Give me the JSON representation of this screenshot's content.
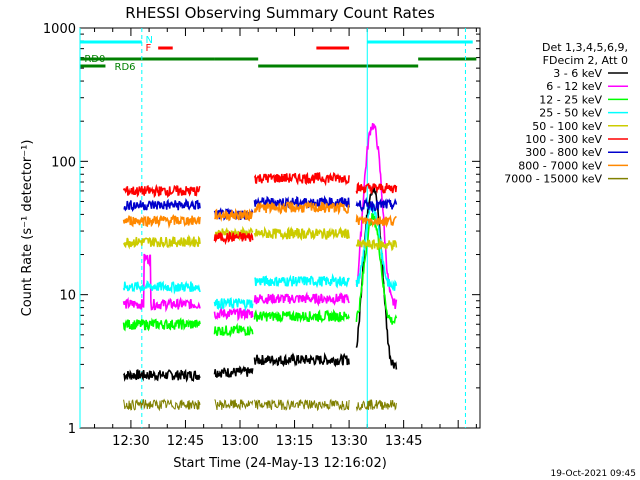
{
  "chart_data": {
    "type": "line",
    "title": "RHESSI Observing Summary Count Rates",
    "xlabel": "Start Time (24-May-13 12:16:02)",
    "ylabel": "Count Rate (s⁻¹ detector⁻¹)",
    "yscale": "log",
    "ylim": [
      1,
      1000
    ],
    "xlim_minutes": [
      0,
      110
    ],
    "x_ticks": [
      "12:30",
      "12:45",
      "13:00",
      "13:15",
      "13:30",
      "13:45"
    ],
    "y_ticks": [
      "1",
      "10",
      "100",
      "1000"
    ],
    "legend_header": [
      "Det 1,3,4,5,6,9,",
      "FDecim 2, Att 0"
    ],
    "legend_placement": "right",
    "timestamp": "19-Oct-2021 09:45",
    "flags": [
      {
        "label": "N",
        "color": "#00ffff"
      },
      {
        "label": "F",
        "color": "#ff0000"
      },
      {
        "label": "RD0",
        "color": "#008000"
      },
      {
        "label": "RD6",
        "color": "#008000"
      }
    ],
    "series": [
      {
        "name": "3 - 6 keV",
        "color": "#000000",
        "level": 2.5
      },
      {
        "name": "6 - 12 keV",
        "color": "#ff00ff",
        "level": 8.5
      },
      {
        "name": "12 - 25 keV",
        "color": "#00ff00",
        "level": 6
      },
      {
        "name": "25 - 50 keV",
        "color": "#00ffff",
        "level": 11.5
      },
      {
        "name": "50 - 100 keV",
        "color": "#cccc00",
        "level": 25
      },
      {
        "name": "100 - 300 keV",
        "color": "#ff0000",
        "level": 60
      },
      {
        "name": "300 - 800 keV",
        "color": "#0000cc",
        "level": 47
      },
      {
        "name": "800 - 7000 keV",
        "color": "#ff8800",
        "level": 36
      },
      {
        "name": "7000 - 15000 keV",
        "color": "#808000",
        "level": 1.5
      }
    ]
  }
}
